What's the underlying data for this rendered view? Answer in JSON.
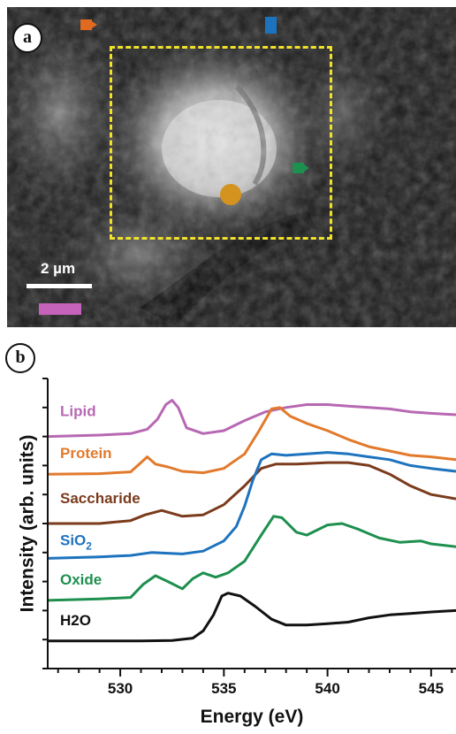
{
  "panel_a": {
    "label": "a",
    "scale_bar": {
      "label": "2 µm"
    },
    "markers": [
      {
        "name": "orange-marker",
        "color": "#e06a1f"
      },
      {
        "name": "blue-marker",
        "color": "#1e73be"
      },
      {
        "name": "green-marker",
        "color": "#1e8f4e"
      },
      {
        "name": "gold-marker",
        "color": "#d4921f"
      }
    ],
    "roi_color": "#f1e12a",
    "swatch_color": "#c562b9"
  },
  "panel_b": {
    "label": "b"
  },
  "chart_data": {
    "type": "line",
    "xlabel": "Energy (eV)",
    "ylabel": "Intensity (arb. units)",
    "xlim": [
      526.5,
      546.2
    ],
    "ylim": [
      0,
      10
    ],
    "xticks": [
      530,
      535,
      540,
      545
    ],
    "grid": false,
    "legend": "inline labels at left",
    "series": [
      {
        "name": "Lipid",
        "color": "#b768b3",
        "label_y": 8.7,
        "points": [
          [
            526.5,
            8.0
          ],
          [
            529,
            8.05
          ],
          [
            530.5,
            8.1
          ],
          [
            531.3,
            8.25
          ],
          [
            531.8,
            8.6
          ],
          [
            532.2,
            9.1
          ],
          [
            532.5,
            9.25
          ],
          [
            532.8,
            9.0
          ],
          [
            533.2,
            8.3
          ],
          [
            534,
            8.1
          ],
          [
            535,
            8.2
          ],
          [
            536,
            8.55
          ],
          [
            537,
            8.85
          ],
          [
            538,
            9.0
          ],
          [
            539,
            9.1
          ],
          [
            540,
            9.1
          ],
          [
            541,
            9.05
          ],
          [
            542,
            9.0
          ],
          [
            543,
            8.95
          ],
          [
            544,
            8.85
          ],
          [
            545,
            8.8
          ],
          [
            546.2,
            8.75
          ]
        ]
      },
      {
        "name": "Protein",
        "color": "#e27a2c",
        "label_y": 7.25,
        "points": [
          [
            526.5,
            6.7
          ],
          [
            529,
            6.72
          ],
          [
            530.5,
            6.78
          ],
          [
            531.0,
            7.1
          ],
          [
            531.3,
            7.3
          ],
          [
            531.7,
            7.05
          ],
          [
            532.3,
            6.95
          ],
          [
            533,
            6.8
          ],
          [
            534,
            6.75
          ],
          [
            535,
            6.9
          ],
          [
            536,
            7.4
          ],
          [
            536.7,
            8.2
          ],
          [
            537.3,
            8.95
          ],
          [
            537.7,
            9.0
          ],
          [
            538.2,
            8.7
          ],
          [
            539,
            8.45
          ],
          [
            540,
            8.2
          ],
          [
            541,
            7.9
          ],
          [
            542,
            7.65
          ],
          [
            543,
            7.5
          ],
          [
            544,
            7.35
          ],
          [
            545,
            7.3
          ],
          [
            546.2,
            7.2
          ]
        ]
      },
      {
        "name": "Saccharide",
        "color": "#7b3b1c",
        "label_y": 5.7,
        "points": [
          [
            526.5,
            5.0
          ],
          [
            529,
            5.0
          ],
          [
            530.5,
            5.1
          ],
          [
            531.2,
            5.3
          ],
          [
            532,
            5.45
          ],
          [
            533,
            5.25
          ],
          [
            534,
            5.3
          ],
          [
            535,
            5.65
          ],
          [
            536,
            6.3
          ],
          [
            536.8,
            6.9
          ],
          [
            537.5,
            7.05
          ],
          [
            538.5,
            7.05
          ],
          [
            540,
            7.1
          ],
          [
            541,
            7.1
          ],
          [
            542,
            7.0
          ],
          [
            543,
            6.7
          ],
          [
            544,
            6.3
          ],
          [
            545,
            6.0
          ],
          [
            546.2,
            5.85
          ]
        ]
      },
      {
        "name": "SiO2",
        "color": "#1e73be",
        "label_y": 4.25,
        "points": [
          [
            526.5,
            3.8
          ],
          [
            529,
            3.85
          ],
          [
            530.5,
            3.9
          ],
          [
            531.5,
            4.0
          ],
          [
            533,
            3.95
          ],
          [
            534,
            4.05
          ],
          [
            535,
            4.4
          ],
          [
            535.6,
            4.9
          ],
          [
            536,
            5.6
          ],
          [
            536.4,
            6.5
          ],
          [
            536.8,
            7.2
          ],
          [
            537.3,
            7.4
          ],
          [
            538,
            7.35
          ],
          [
            539,
            7.4
          ],
          [
            540,
            7.45
          ],
          [
            541,
            7.4
          ],
          [
            542,
            7.3
          ],
          [
            543,
            7.2
          ],
          [
            544,
            7.0
          ],
          [
            545,
            6.9
          ],
          [
            546.2,
            6.8
          ]
        ]
      },
      {
        "name": "Oxide",
        "color": "#1e8f4e",
        "label_y": 2.9,
        "points": [
          [
            526.5,
            2.35
          ],
          [
            529,
            2.4
          ],
          [
            530.5,
            2.45
          ],
          [
            531.1,
            2.9
          ],
          [
            531.7,
            3.2
          ],
          [
            532.3,
            3.0
          ],
          [
            533,
            2.75
          ],
          [
            533.5,
            3.1
          ],
          [
            534,
            3.3
          ],
          [
            534.6,
            3.15
          ],
          [
            535.2,
            3.3
          ],
          [
            536,
            3.7
          ],
          [
            536.8,
            4.6
          ],
          [
            537.4,
            5.25
          ],
          [
            537.8,
            5.2
          ],
          [
            538.5,
            4.7
          ],
          [
            539,
            4.6
          ],
          [
            540,
            4.95
          ],
          [
            540.7,
            5.0
          ],
          [
            541.5,
            4.8
          ],
          [
            542.5,
            4.5
          ],
          [
            543.5,
            4.35
          ],
          [
            544.5,
            4.4
          ],
          [
            545,
            4.3
          ],
          [
            546.2,
            4.2
          ]
        ]
      },
      {
        "name": "H2O",
        "color": "#111111",
        "label_y": 1.5,
        "points": [
          [
            526.5,
            0.95
          ],
          [
            529,
            0.95
          ],
          [
            531,
            0.95
          ],
          [
            532.5,
            0.97
          ],
          [
            533.5,
            1.05
          ],
          [
            534.0,
            1.3
          ],
          [
            534.5,
            1.85
          ],
          [
            534.9,
            2.5
          ],
          [
            535.2,
            2.6
          ],
          [
            535.8,
            2.5
          ],
          [
            536.5,
            2.15
          ],
          [
            537.3,
            1.7
          ],
          [
            538,
            1.5
          ],
          [
            539,
            1.5
          ],
          [
            540,
            1.55
          ],
          [
            541,
            1.6
          ],
          [
            542,
            1.75
          ],
          [
            543,
            1.85
          ],
          [
            544,
            1.9
          ],
          [
            545,
            1.95
          ],
          [
            546.2,
            2.0
          ]
        ]
      }
    ]
  }
}
